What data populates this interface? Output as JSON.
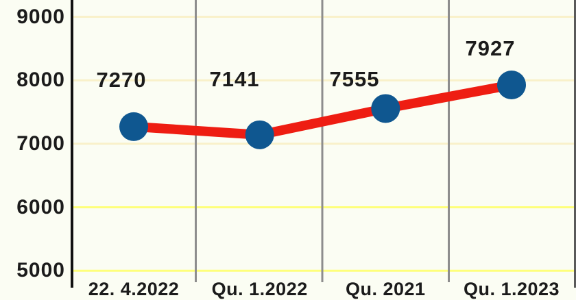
{
  "chart_data": {
    "type": "line",
    "title": "",
    "xlabel": "",
    "ylabel": "",
    "categories": [
      "22. 4.2022",
      "Qu. 1.2022",
      "Qu. 2021",
      "Qu. 1.2023"
    ],
    "values": [
      7270,
      7141,
      7555,
      7927
    ],
    "point_labels": [
      "7270",
      "7141",
      "7555",
      "7927"
    ],
    "ytick_labels": [
      "9000",
      "8000",
      "7000",
      "6000",
      "5000"
    ],
    "ytick_values": [
      9000,
      8000,
      7000,
      6000,
      5000
    ],
    "ylim": [
      4900,
      9250
    ],
    "grid": {
      "horizontal": "yellow gridlines at each 1000 step, pale above 7000 incl., bright below",
      "vertical": "gray separators between category columns"
    },
    "legend": "none",
    "colors": {
      "line": "#ee1d12",
      "marker": "#0f5790",
      "grid_pale": "#f9f1ca",
      "grid_bright": "#feff7a",
      "axis": "#111111",
      "separator": "#8d8d8d",
      "right_border": "#5a5a5a",
      "text": "#1b1b1b",
      "background": "#fbfdf3"
    }
  }
}
